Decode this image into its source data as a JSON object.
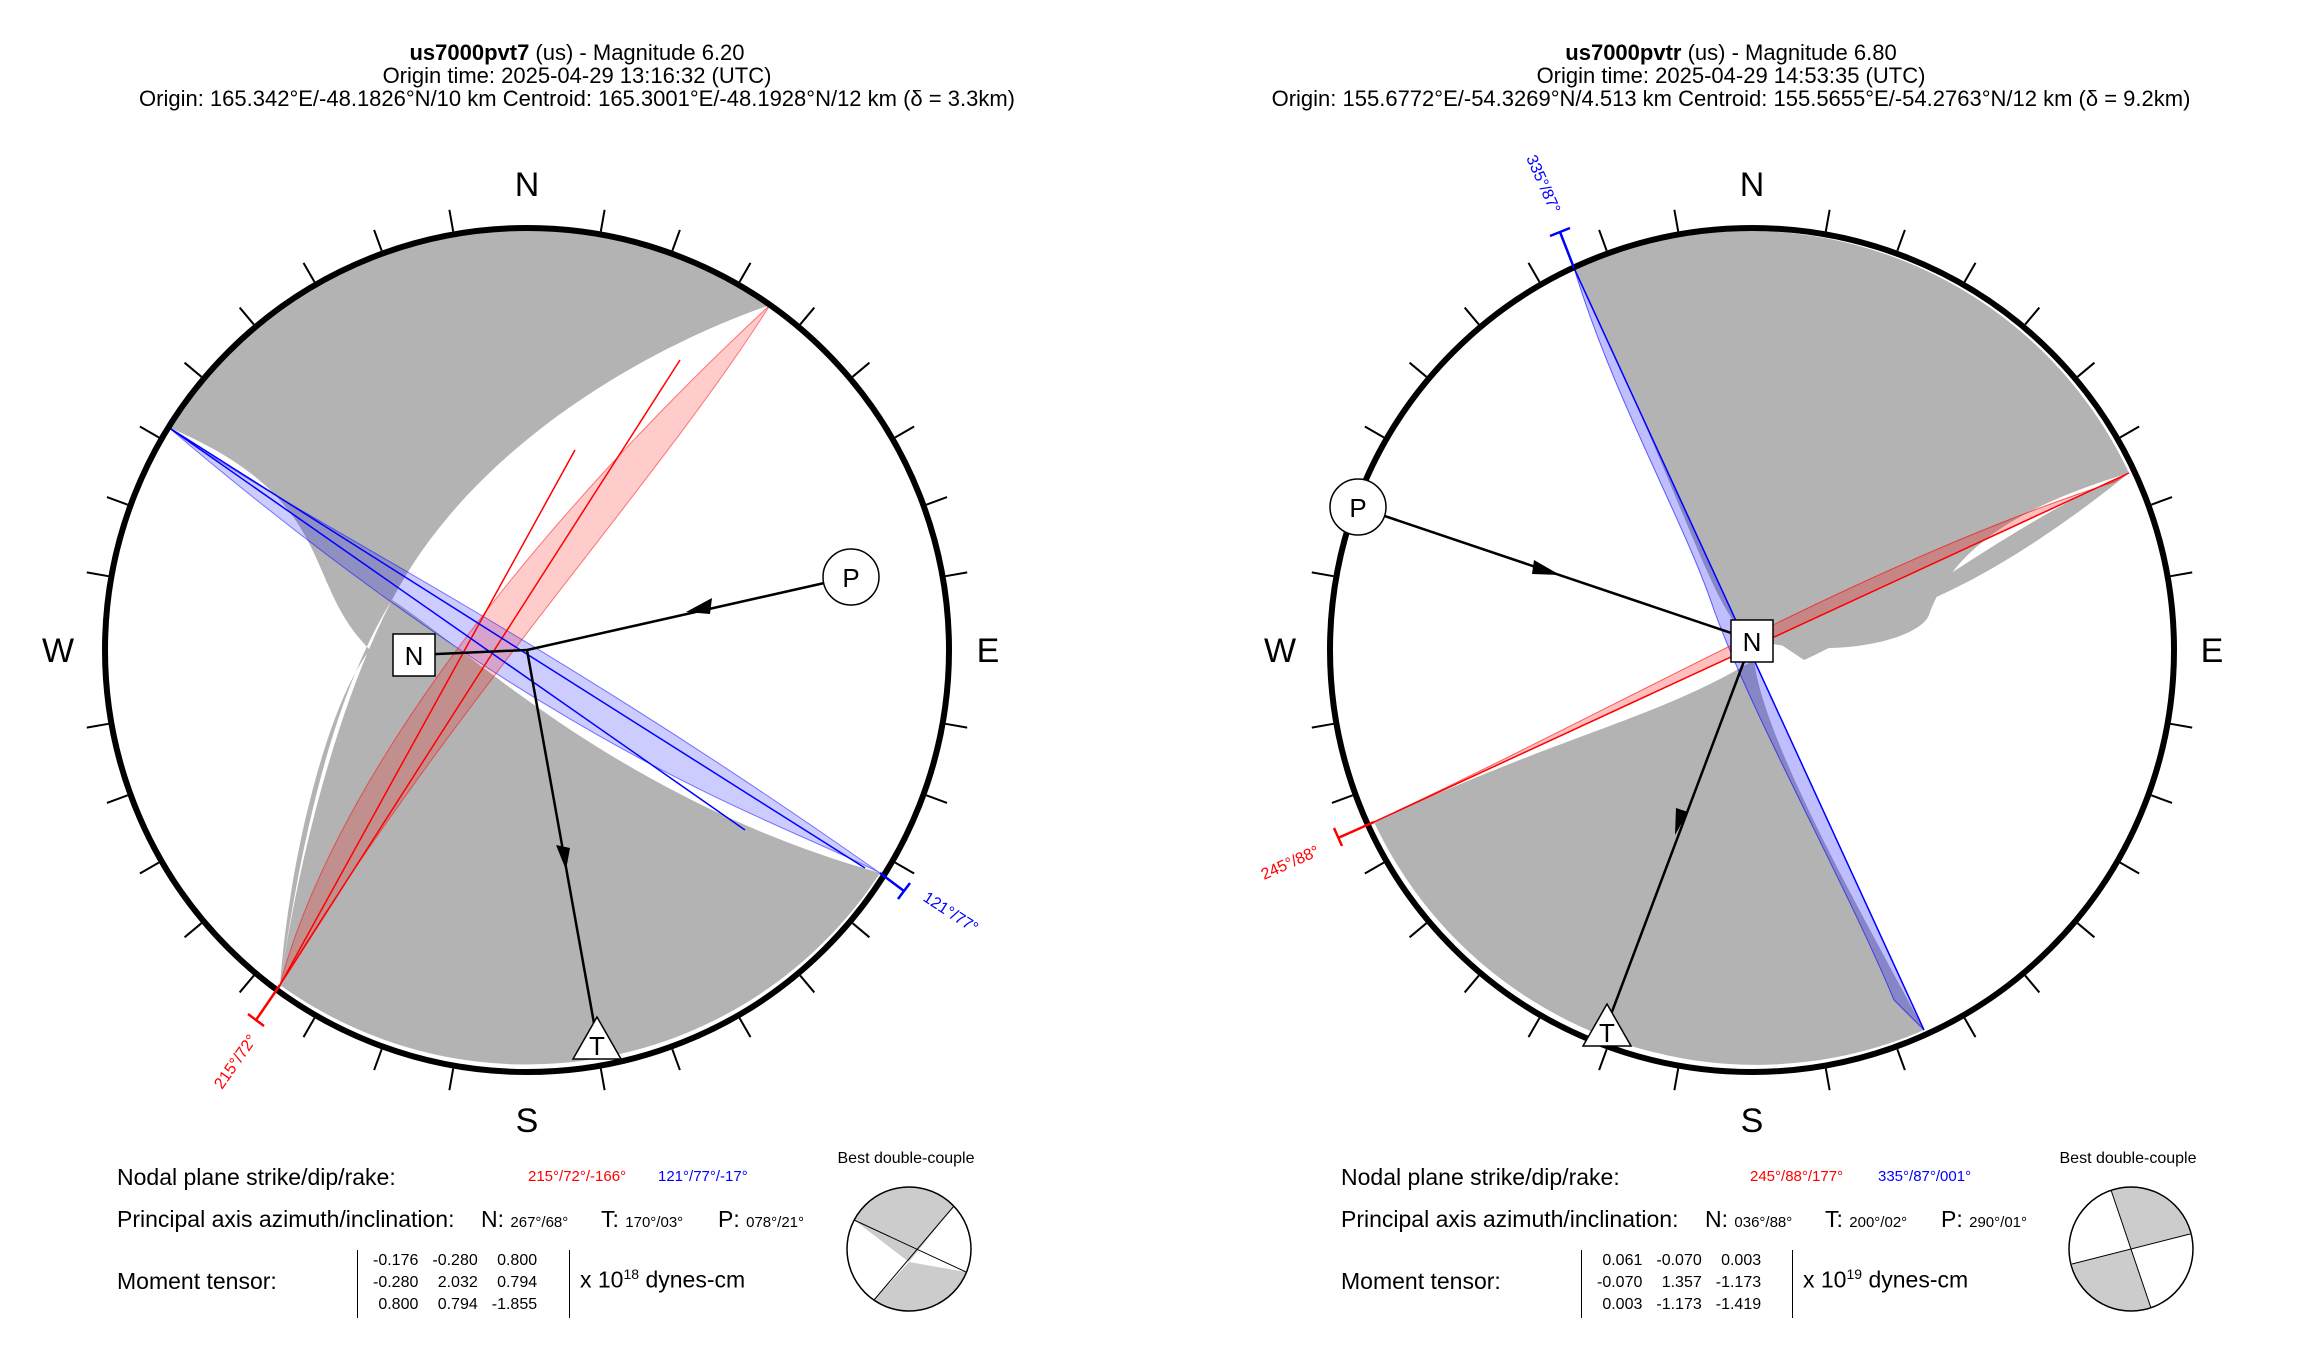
{
  "events": [
    {
      "event_id": "us7000pvt7",
      "title_rest": " (us) - Magnitude 6.20",
      "origin_time": "Origin time: 2025-04-29 13:16:32 (UTC)",
      "origin_line": "Origin: 165.342°E/-48.1826°N/10 km   Centroid: 165.3001°E/-48.1928°N/12 km (δ = 3.3km)",
      "compass": {
        "north": "N",
        "south": "S",
        "east": "E",
        "west": "W"
      },
      "plane_labels": {
        "red": "215°/72°",
        "blue": "121°/77°"
      },
      "axis_labels": {
        "p": "P",
        "t": "T",
        "n": "N"
      },
      "nodal_label": "Nodal plane strike/dip/rake:",
      "nodal_red": "215°/72°/-166°",
      "nodal_blue": "121°/77°/-17°",
      "axis_title": "Principal axis azimuth/inclination:",
      "n_label": "N:",
      "n_value": "267°/68°",
      "t_label": "T:",
      "t_value": "170°/03°",
      "p_label": "P:",
      "p_value": "078°/21°",
      "mt_label": "Moment tensor:",
      "tensor": [
        [
          "-0.176",
          "-0.280",
          "0.800"
        ],
        [
          "-0.280",
          "2.032",
          "0.794"
        ],
        [
          "0.800",
          "0.794",
          "-1.855"
        ]
      ],
      "scale_prefix": "x 10",
      "scale_exp": "18",
      "scale_suffix": " dynes-cm",
      "bdc_title": "Best double-couple",
      "colors": {
        "red": "#ff0000",
        "blue": "#0000ff",
        "shade": "#b3b3b3"
      }
    },
    {
      "event_id": "us7000pvtr",
      "title_rest": " (us) - Magnitude 6.80",
      "origin_time": "Origin time: 2025-04-29 14:53:35 (UTC)",
      "origin_line": "Origin: 155.6772°E/-54.3269°N/4.513 km   Centroid: 155.5655°E/-54.2763°N/12 km (δ = 9.2km)",
      "compass": {
        "north": "N",
        "south": "S",
        "east": "E",
        "west": "W"
      },
      "plane_labels": {
        "red": "245°/88°",
        "blue": "335°/87°"
      },
      "axis_labels": {
        "p": "P",
        "t": "T",
        "n": "N"
      },
      "nodal_label": "Nodal plane strike/dip/rake:",
      "nodal_red": "245°/88°/177°",
      "nodal_blue": "335°/87°/001°",
      "axis_title": "Principal axis azimuth/inclination:",
      "n_label": "N:",
      "n_value": "036°/88°",
      "t_label": "T:",
      "t_value": "200°/02°",
      "p_label": "P:",
      "p_value": "290°/01°",
      "mt_label": "Moment tensor:",
      "tensor": [
        [
          "0.061",
          "-0.070",
          "0.003"
        ],
        [
          "-0.070",
          "1.357",
          "-1.173"
        ],
        [
          "0.003",
          "-1.173",
          "-1.419"
        ]
      ],
      "scale_prefix": "x 10",
      "scale_exp": "19",
      "scale_suffix": " dynes-cm",
      "bdc_title": "Best double-couple",
      "colors": {
        "red": "#ff0000",
        "blue": "#0000ff",
        "shade": "#b3b3b3"
      }
    }
  ]
}
